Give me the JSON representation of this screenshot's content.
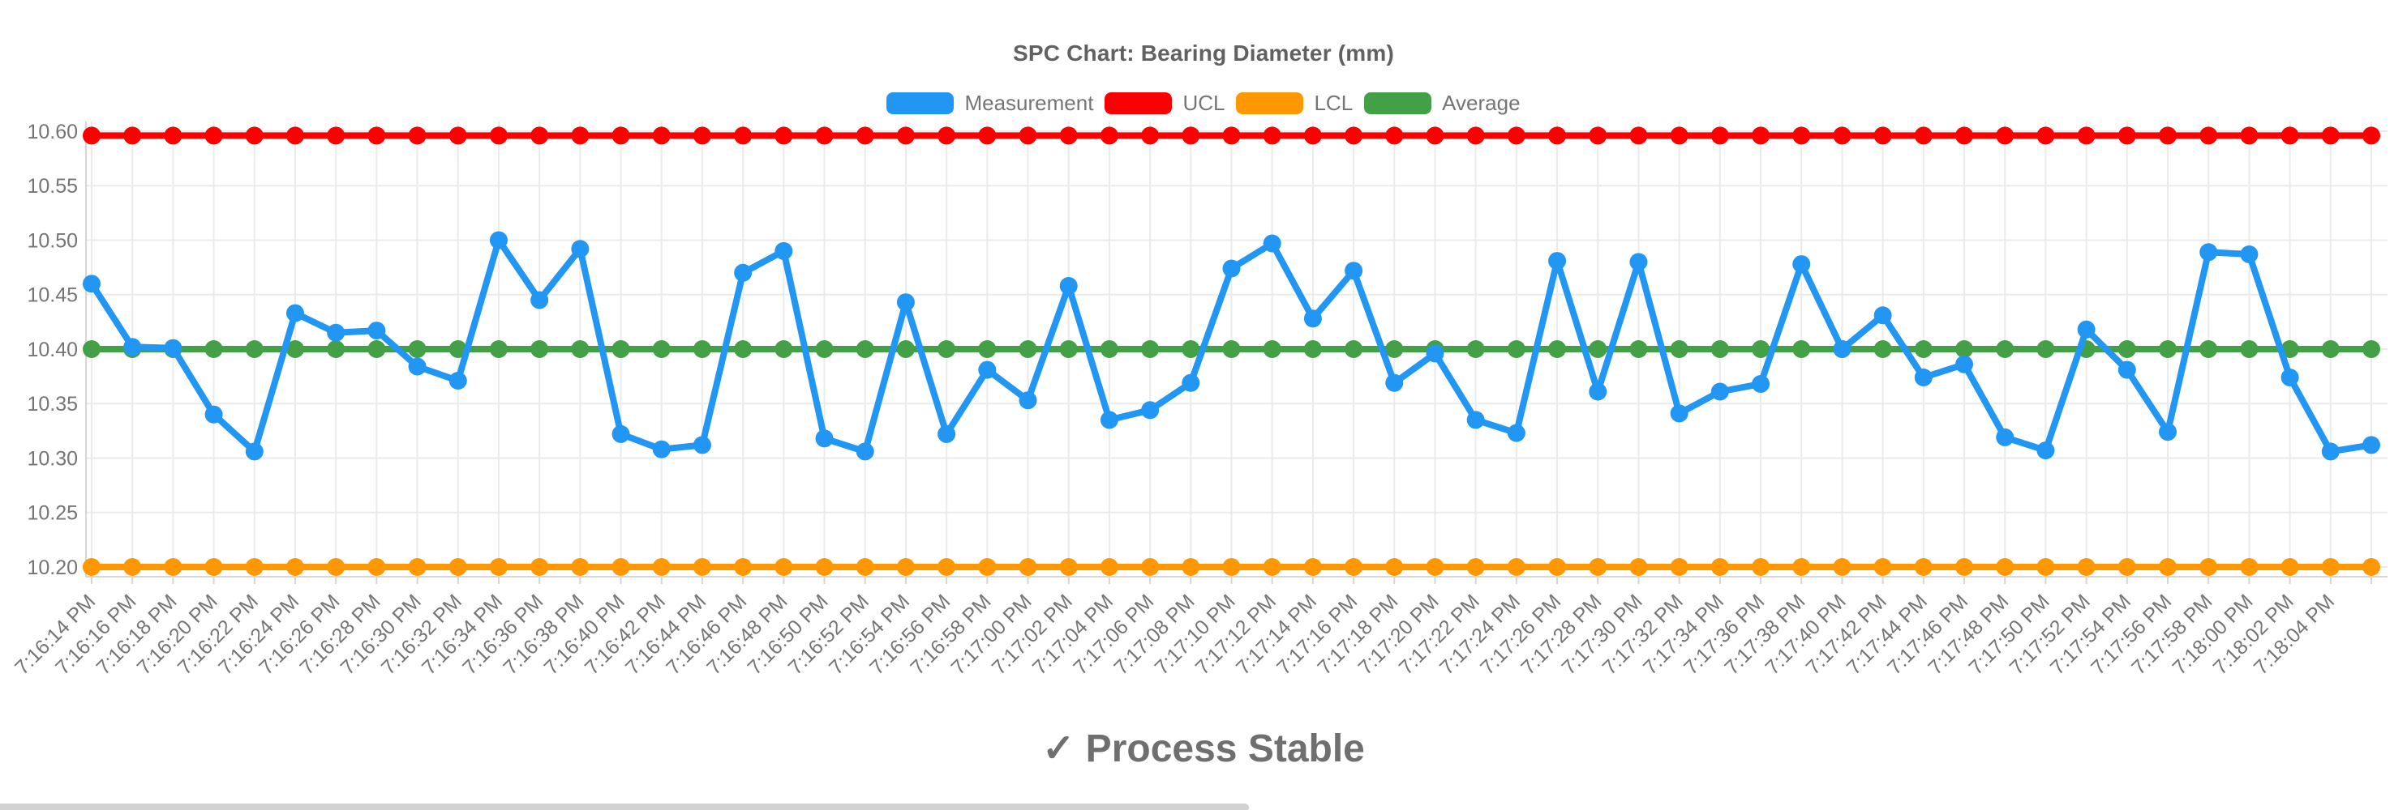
{
  "title": "SPC Chart: Bearing Diameter (mm)",
  "status_text": "✓ Process Stable",
  "colors": {
    "measurement": "#2196f3",
    "ucl": "#fa0000",
    "lcl": "#ff9800",
    "average": "#43a047",
    "grid": "#ebebeb",
    "axis": "#d6d6d6",
    "tick_text": "#757575",
    "title_text": "#616161",
    "status_text": "#6f6f6f",
    "scrollbar": "#d2d2d2"
  },
  "legend": [
    {
      "key": "measurement",
      "label": "Measurement",
      "color": "#2196f3"
    },
    {
      "key": "ucl",
      "label": "UCL",
      "color": "#fa0000"
    },
    {
      "key": "lcl",
      "label": "LCL",
      "color": "#ff9800"
    },
    {
      "key": "average",
      "label": "Average",
      "color": "#43a047"
    }
  ],
  "chart_data": {
    "type": "line",
    "title": "SPC Chart: Bearing Diameter (mm)",
    "xlabel": "",
    "ylabel": "",
    "grid": true,
    "legend_position": "top",
    "x_points": 57,
    "unlabeled_last_point": true,
    "x_labels": [
      "7:16:14 PM",
      "7:16:16 PM",
      "7:16:18 PM",
      "7:16:20 PM",
      "7:16:22 PM",
      "7:16:24 PM",
      "7:16:26 PM",
      "7:16:28 PM",
      "7:16:30 PM",
      "7:16:32 PM",
      "7:16:34 PM",
      "7:16:36 PM",
      "7:16:38 PM",
      "7:16:40 PM",
      "7:16:42 PM",
      "7:16:44 PM",
      "7:16:46 PM",
      "7:16:48 PM",
      "7:16:50 PM",
      "7:16:52 PM",
      "7:16:54 PM",
      "7:16:56 PM",
      "7:16:58 PM",
      "7:17:00 PM",
      "7:17:02 PM",
      "7:17:04 PM",
      "7:17:06 PM",
      "7:17:08 PM",
      "7:17:10 PM",
      "7:17:12 PM",
      "7:17:14 PM",
      "7:17:16 PM",
      "7:17:18 PM",
      "7:17:20 PM",
      "7:17:22 PM",
      "7:17:24 PM",
      "7:17:26 PM",
      "7:17:28 PM",
      "7:17:30 PM",
      "7:17:32 PM",
      "7:17:34 PM",
      "7:17:36 PM",
      "7:17:38 PM",
      "7:17:40 PM",
      "7:17:42 PM",
      "7:17:44 PM",
      "7:17:46 PM",
      "7:17:48 PM",
      "7:17:50 PM",
      "7:17:52 PM",
      "7:17:54 PM",
      "7:17:56 PM",
      "7:17:58 PM",
      "7:18:00 PM",
      "7:18:02 PM",
      "7:18:04 PM"
    ],
    "y_ticks": [
      "10.60",
      "10.55",
      "10.50",
      "10.45",
      "10.40",
      "10.35",
      "10.30",
      "10.25",
      "10.20"
    ],
    "ylim": [
      10.191,
      10.609
    ],
    "series": [
      {
        "name": "Measurement",
        "color": "#2196f3",
        "values": [
          10.46,
          10.402,
          10.401,
          10.34,
          10.306,
          10.433,
          10.415,
          10.417,
          10.384,
          10.371,
          10.5,
          10.445,
          10.492,
          10.322,
          10.308,
          10.312,
          10.47,
          10.49,
          10.318,
          10.306,
          10.443,
          10.322,
          10.381,
          10.353,
          10.458,
          10.335,
          10.344,
          10.369,
          10.474,
          10.497,
          10.428,
          10.472,
          10.369,
          10.396,
          10.335,
          10.323,
          10.481,
          10.361,
          10.48,
          10.341,
          10.361,
          10.368,
          10.478,
          10.4,
          10.431,
          10.374,
          10.386,
          10.319,
          10.307,
          10.418,
          10.381,
          10.324,
          10.489,
          10.487,
          10.374,
          10.306,
          10.312
        ]
      },
      {
        "name": "UCL",
        "color": "#fa0000",
        "constant": 10.596
      },
      {
        "name": "LCL",
        "color": "#ff9800",
        "constant": 10.2
      },
      {
        "name": "Average",
        "color": "#43a047",
        "constant": 10.4
      }
    ]
  }
}
